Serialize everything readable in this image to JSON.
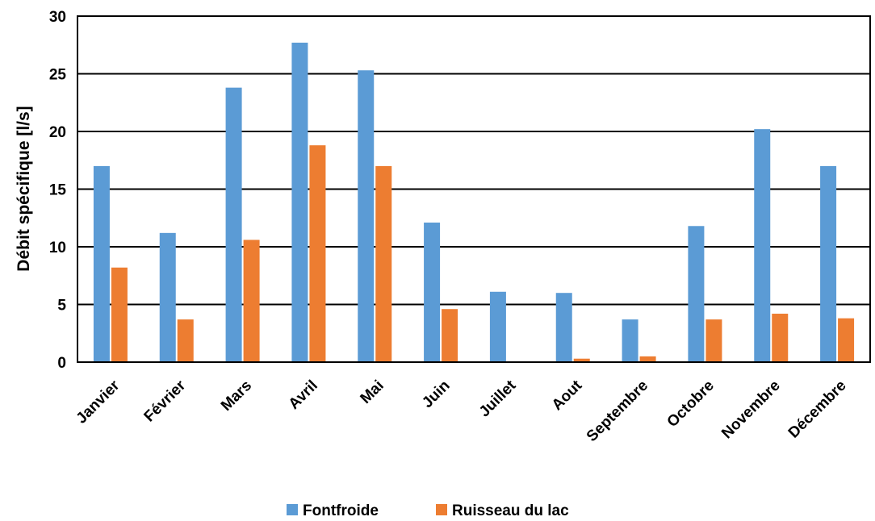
{
  "chart_data": {
    "type": "bar",
    "categories": [
      "Janvier",
      "Février",
      "Mars",
      "Avril",
      "Mai",
      "Juin",
      "Juillet",
      "Aout",
      "Septembre",
      "Octobre",
      "Novembre",
      "Décembre"
    ],
    "series": [
      {
        "name": "Fontfroide",
        "color": "#5B9BD5",
        "values": [
          17.0,
          11.2,
          23.8,
          27.7,
          25.3,
          12.1,
          6.1,
          6.0,
          3.7,
          11.8,
          20.2,
          17.0
        ]
      },
      {
        "name": "Ruisseau du lac",
        "color": "#ED7D31",
        "values": [
          8.2,
          3.7,
          10.6,
          18.8,
          17.0,
          4.6,
          0.0,
          0.3,
          0.5,
          3.7,
          4.2,
          3.8
        ]
      }
    ],
    "ylabel": "Débit spécifique  [l/s]",
    "xlabel": "",
    "ylim": [
      0,
      30
    ],
    "yticks": [
      0,
      5,
      10,
      15,
      20,
      25,
      30
    ],
    "grid": true,
    "legend_position": "bottom"
  }
}
